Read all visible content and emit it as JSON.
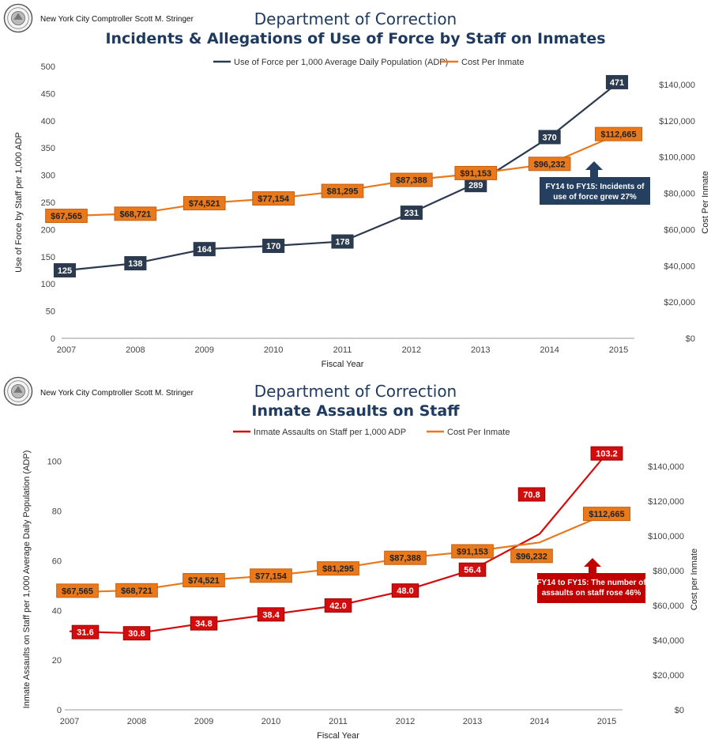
{
  "header": {
    "comptroller": "New York City Comptroller Scott M. Stringer"
  },
  "icons": {
    "seal": "nyc-seal-icon",
    "callout_arrow": "arrow-up-icon"
  },
  "colors": {
    "title": "#1f3a5f",
    "navy": "#2b3a4f",
    "orange": "#e8791d",
    "red": "#d10d0d",
    "callout_navy": "#243f60",
    "callout_red": "#c00000"
  },
  "chart_data": [
    {
      "type": "line",
      "title": "Department of Correction",
      "subtitle": "Incidents & Allegations of Use of Force by Staff on Inmates",
      "xlabel": "Fiscal Year",
      "ylabel": "Use of Force by Staff  per 1,000 ADP",
      "y2label": "Cost Per Inmate",
      "x": [
        "2007",
        "2008",
        "2009",
        "2010",
        "2011",
        "2012",
        "2013",
        "2014",
        "2015"
      ],
      "ylim": [
        0,
        500
      ],
      "yticks": [
        "0",
        "50",
        "100",
        "150",
        "200",
        "250",
        "300",
        "350",
        "400",
        "450",
        "500"
      ],
      "y2lim": [
        0,
        150000
      ],
      "y2ticks": [
        "$0",
        "$20,000",
        "$40,000",
        "$60,000",
        "$80,000",
        "$100,000",
        "$120,000",
        "$140,000"
      ],
      "legend_position": "top",
      "series": [
        {
          "name": "Use of Force per 1,000 Average Daily Population (ADP)",
          "axis": "left",
          "color": "#2b3a4f",
          "values": [
            125,
            138,
            164,
            170,
            178,
            231,
            289,
            370,
            471
          ],
          "labels": [
            "125",
            "138",
            "164",
            "170",
            "178",
            "231",
            "289",
            "370",
            "471"
          ]
        },
        {
          "name": "Cost Per Inmate",
          "axis": "right",
          "color": "#e8791d",
          "values": [
            67565,
            68721,
            74521,
            77154,
            81295,
            87388,
            91153,
            96232,
            112665
          ],
          "labels": [
            "$67,565",
            "$68,721",
            "$74,521",
            "$77,154",
            "$81,295",
            "$87,388",
            "$91,153",
            "$96,232",
            "$112,665"
          ]
        }
      ],
      "callout": {
        "lines": [
          "FY14 to FY15: Incidents of",
          "use of force grew 27%"
        ]
      }
    },
    {
      "type": "line",
      "title": "Department of Correction",
      "subtitle": "Inmate Assaults on Staff",
      "xlabel": "Fiscal Year",
      "ylabel": "Inmate Assaults on Staff per 1,000 Average Daily Population (ADP)",
      "y2label": "Cost per Inmate",
      "x": [
        "2007",
        "2008",
        "2009",
        "2010",
        "2011",
        "2012",
        "2013",
        "2014",
        "2015"
      ],
      "ylim": [
        0,
        105
      ],
      "yticks": [
        "0",
        "20",
        "40",
        "60",
        "80",
        "100"
      ],
      "y2lim": [
        0,
        150000
      ],
      "y2ticks": [
        "$0",
        "$20,000",
        "$40,000",
        "$60,000",
        "$80,000",
        "$100,000",
        "$120,000",
        "$140,000"
      ],
      "legend_position": "top",
      "series": [
        {
          "name": "Inmate Assaults on Staff per 1,000 ADP",
          "axis": "left",
          "color": "#d10d0d",
          "values": [
            31.6,
            30.8,
            34.8,
            38.4,
            42.0,
            48.0,
            56.4,
            70.8,
            103.2
          ],
          "labels": [
            "31.6",
            "30.8",
            "34.8",
            "38.4",
            "42.0",
            "48.0",
            "56.4",
            "70.8",
            "103.2"
          ]
        },
        {
          "name": "Cost Per Inmate",
          "axis": "right",
          "color": "#e8791d",
          "values": [
            67565,
            68721,
            74521,
            77154,
            81295,
            87388,
            91153,
            96232,
            112665
          ],
          "labels": [
            "$67,565",
            "$68,721",
            "$74,521",
            "$77,154",
            "$81,295",
            "$87,388",
            "$91,153",
            "$96,232",
            "$112,665"
          ]
        }
      ],
      "callout": {
        "lines": [
          "FY14 to FY15: The number of",
          "assaults on staff rose 46%"
        ]
      }
    }
  ]
}
